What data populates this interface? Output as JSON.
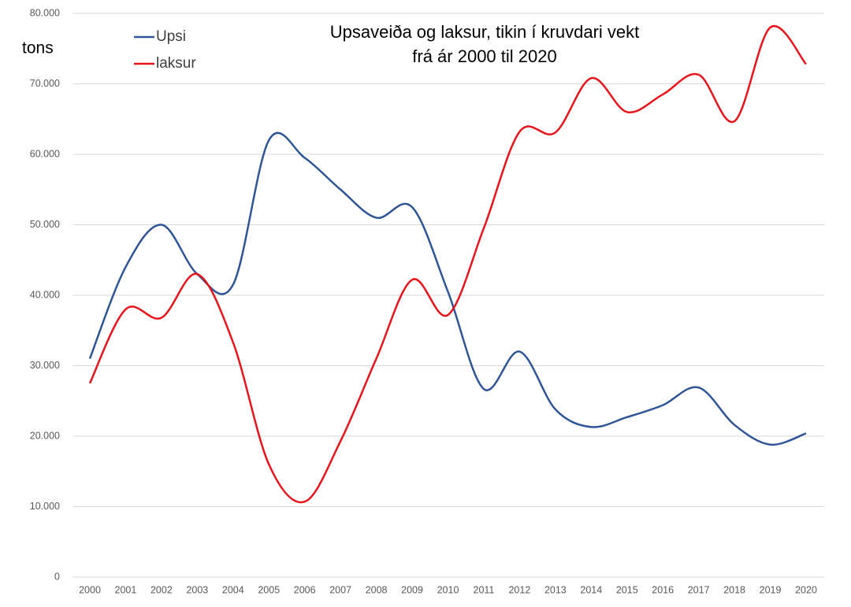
{
  "chart_data": {
    "type": "line",
    "title": "Upsaveiða og laksur, tikin í kruvdari vekt",
    "subtitle": "frá ár 2000 til 2020",
    "y_label": "tons",
    "categories": [
      "2000",
      "2001",
      "2002",
      "2003",
      "2004",
      "2005",
      "2006",
      "2007",
      "2008",
      "2009",
      "2010",
      "2011",
      "2012",
      "2013",
      "2014",
      "2015",
      "2016",
      "2017",
      "2018",
      "2019",
      "2020"
    ],
    "series": [
      {
        "name": "Upsi",
        "color": "#2f5597",
        "values": [
          31000,
          44000,
          50000,
          43000,
          41500,
          62000,
          59500,
          55000,
          51000,
          52500,
          40500,
          26700,
          32000,
          23800,
          21300,
          22700,
          24400,
          26900,
          21600,
          18800,
          20400
        ]
      },
      {
        "name": "laksur",
        "color": "#e8141c",
        "values": [
          27500,
          38000,
          36800,
          43000,
          33300,
          16000,
          10700,
          19300,
          31000,
          42200,
          37200,
          49500,
          63200,
          63100,
          70800,
          66000,
          68500,
          71300,
          64700,
          78000,
          72800
        ]
      }
    ],
    "ylim": [
      0,
      80000
    ],
    "yticks": [
      0,
      {
        "value": 10000,
        "label": "10.000"
      },
      {
        "value": 20000,
        "label": "20.000"
      },
      {
        "value": 30000,
        "label": "30.000"
      },
      {
        "value": 40000,
        "label": "40.000"
      },
      {
        "value": 50000,
        "label": "50.000"
      },
      {
        "value": 60000,
        "label": "60.000"
      },
      {
        "value": 70000,
        "label": "70.000"
      },
      {
        "value": 80000,
        "label": "80.000"
      }
    ],
    "grid": true,
    "smooth": true,
    "legend": "top-left"
  }
}
